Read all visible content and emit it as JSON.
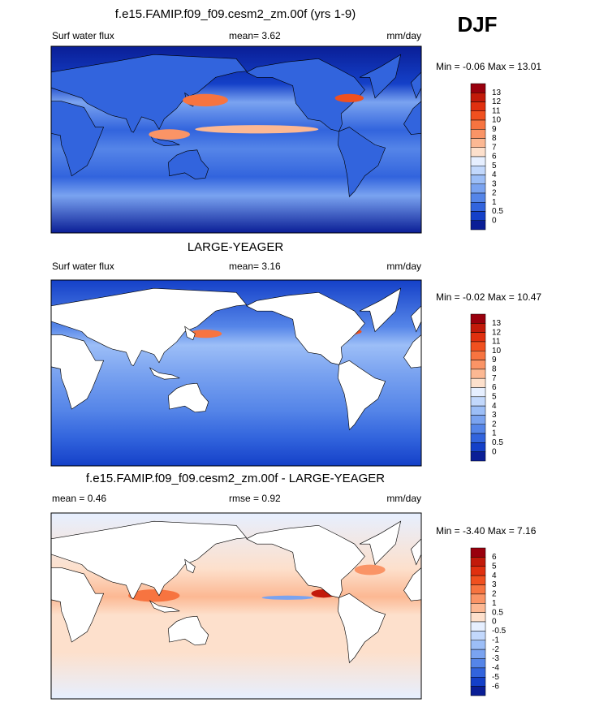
{
  "season": "DJF",
  "palette": [
    "#99000d",
    "#c21a0a",
    "#e0300f",
    "#f0501f",
    "#f77440",
    "#fa9466",
    "#fcb893",
    "#fde0cc",
    "#e6efff",
    "#c2d8fc",
    "#9cbef7",
    "#7aa3f0",
    "#5585e8",
    "#3264dd",
    "#1440c8",
    "#0a1e96"
  ],
  "panels": [
    {
      "title": "f.e15.FAMIP.f09_f09.cesm2_zm.00f (yrs 1-9)",
      "left": "Surf water flux",
      "center": "mean=   3.62",
      "right": "mm/day",
      "minmax": "Min =  -0.06 Max =  13.01",
      "colorbar": {
        "labels": [
          13,
          12,
          11,
          10,
          9,
          8,
          7,
          6,
          5,
          4,
          3,
          2,
          1,
          0.5,
          0
        ]
      }
    },
    {
      "title": "LARGE-YEAGER",
      "left": "Surf water flux",
      "center": "mean=   3.16",
      "right": "mm/day",
      "minmax": "Min =  -0.02 Max =  10.47",
      "colorbar": {
        "labels": [
          13,
          12,
          11,
          10,
          9,
          8,
          7,
          6,
          5,
          4,
          3,
          2,
          1,
          0.5,
          0
        ]
      }
    },
    {
      "title": "f.e15.FAMIP.f09_f09.cesm2_zm.00f - LARGE-YEAGER",
      "left": "mean =   0.46",
      "center": "rmse =   0.92",
      "right": "mm/day",
      "minmax": "Min =  -3.40 Max =   7.16",
      "colorbar": {
        "labels": [
          6,
          5,
          4,
          3,
          2,
          1,
          0.5,
          0,
          -0.5,
          -1,
          -2,
          -3,
          -4,
          -5,
          -6
        ]
      }
    }
  ]
}
